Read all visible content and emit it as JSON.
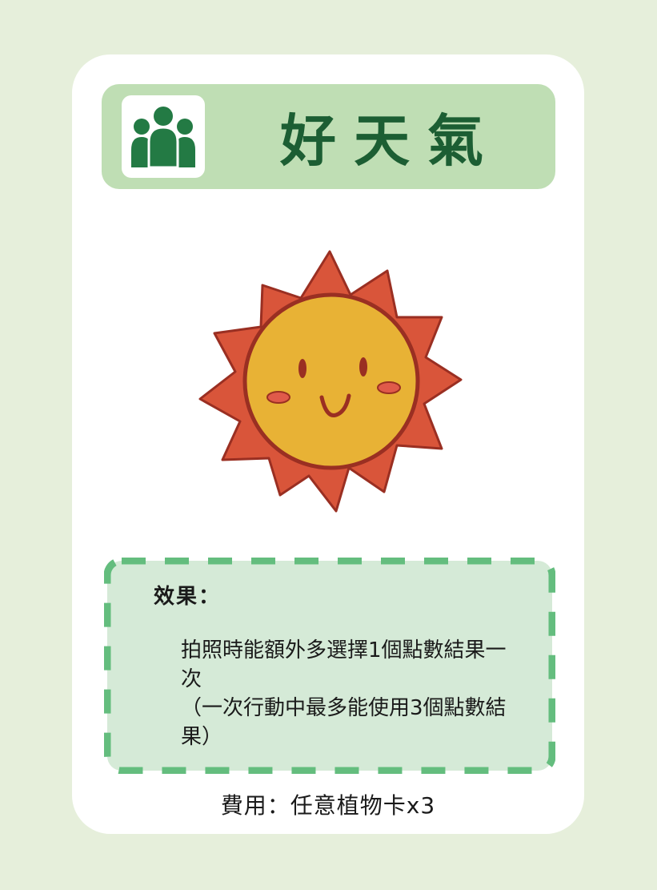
{
  "card": {
    "title": "好天氣",
    "title_icon": "group-players-icon",
    "illustration": "smiling-sun-icon",
    "effect_heading": "效果：",
    "effect_text": "拍照時能額外多選擇1個點數結果一次\n（一次行動中最多能使用3個點數結果）",
    "cost": "費用：任意植物卡x3"
  },
  "colors": {
    "background": "#e6efdb",
    "card": "#ffffff",
    "title_bar": "#bfdeb4",
    "title_text": "#1c5e33",
    "icon_green": "#237a44",
    "effect_fill": "#d5ead7",
    "effect_dash": "#64bd7e",
    "sun_rays": "#d9553a",
    "sun_face": "#e8b235",
    "sun_outline": "#9a2f22"
  }
}
